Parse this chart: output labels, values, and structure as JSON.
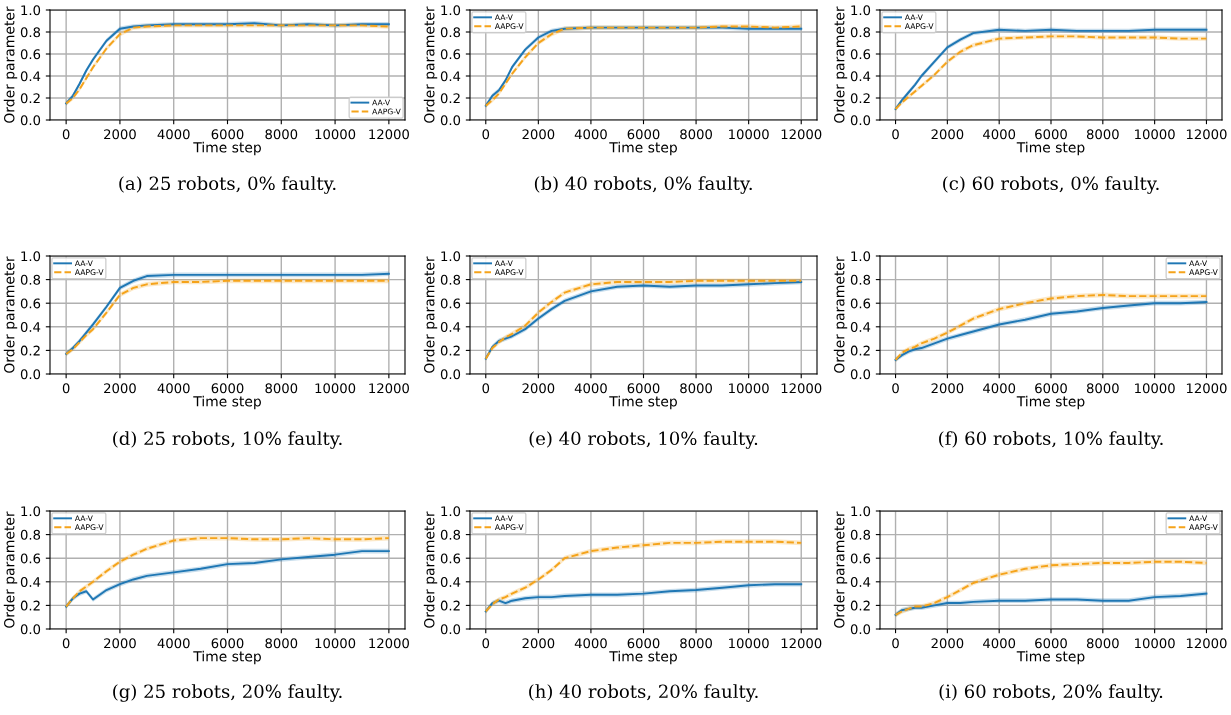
{
  "chart_data": [
    {
      "type": "line",
      "xlabel": "Time step",
      "ylabel": "Order parameter",
      "annotations": [
        "(a) 25 robots, 0% faulty."
      ],
      "legend": "lower right",
      "grid": true,
      "xlim": [
        -600,
        12600
      ],
      "ylim": [
        0,
        1
      ],
      "xticks": [
        0,
        2000,
        4000,
        6000,
        8000,
        10000,
        12000
      ],
      "yticks": [
        {
          "value": 0,
          "label": "0.0"
        },
        {
          "value": 0.2,
          "label": "0.2"
        },
        {
          "value": 0.4,
          "label": "0.4"
        },
        {
          "value": 0.6,
          "label": "0.6"
        },
        {
          "value": 0.8,
          "label": "0.8"
        },
        {
          "value": 1,
          "label": "1.0"
        }
      ],
      "x": [
        0,
        250,
        500,
        750,
        1000,
        1500,
        2000,
        2500,
        3000,
        4000,
        5000,
        6000,
        7000,
        8000,
        9000,
        10000,
        11000,
        12000
      ],
      "series": [
        {
          "name": "AA-V",
          "color": "#1f77b4",
          "line_style": "solid",
          "values": [
            0.15,
            0.22,
            0.33,
            0.45,
            0.55,
            0.72,
            0.83,
            0.85,
            0.86,
            0.87,
            0.87,
            0.87,
            0.88,
            0.86,
            0.87,
            0.86,
            0.87,
            0.87
          ],
          "lower": [
            0.13,
            0.2,
            0.31,
            0.43,
            0.53,
            0.7,
            0.81,
            0.83,
            0.84,
            0.85,
            0.85,
            0.85,
            0.86,
            0.84,
            0.85,
            0.84,
            0.85,
            0.85
          ],
          "upper": [
            0.17,
            0.24,
            0.35,
            0.47,
            0.57,
            0.74,
            0.85,
            0.87,
            0.88,
            0.89,
            0.89,
            0.89,
            0.9,
            0.88,
            0.89,
            0.88,
            0.89,
            0.89
          ]
        },
        {
          "name": "AAPG-V",
          "color": "#f5a31a",
          "line_style": "dashed",
          "values": [
            0.15,
            0.2,
            0.28,
            0.38,
            0.48,
            0.65,
            0.78,
            0.84,
            0.85,
            0.86,
            0.86,
            0.86,
            0.86,
            0.86,
            0.86,
            0.86,
            0.86,
            0.85
          ],
          "lower": [
            0.13,
            0.18,
            0.26,
            0.36,
            0.46,
            0.63,
            0.76,
            0.82,
            0.83,
            0.84,
            0.84,
            0.84,
            0.84,
            0.84,
            0.84,
            0.84,
            0.84,
            0.83
          ],
          "upper": [
            0.17,
            0.22,
            0.3,
            0.4,
            0.5,
            0.67,
            0.8,
            0.86,
            0.87,
            0.88,
            0.88,
            0.88,
            0.88,
            0.88,
            0.88,
            0.88,
            0.88,
            0.87
          ]
        }
      ]
    },
    {
      "type": "line",
      "xlabel": "Time step",
      "ylabel": "Order parameter",
      "annotations": [
        "(b) 40 robots, 0% faulty."
      ],
      "legend": "top left",
      "grid": true,
      "xlim": [
        -600,
        12600
      ],
      "ylim": [
        0,
        1
      ],
      "xticks": [
        0,
        2000,
        4000,
        6000,
        8000,
        10000,
        12000
      ],
      "yticks": [
        {
          "value": 0,
          "label": "0.0"
        },
        {
          "value": 0.2,
          "label": "0.2"
        },
        {
          "value": 0.4,
          "label": "0.4"
        },
        {
          "value": 0.6,
          "label": "0.6"
        },
        {
          "value": 0.8,
          "label": "0.8"
        },
        {
          "value": 1,
          "label": "1.0"
        }
      ],
      "x": [
        0,
        250,
        500,
        750,
        1000,
        1500,
        2000,
        2500,
        3000,
        4000,
        5000,
        6000,
        7000,
        8000,
        9000,
        10000,
        11000,
        12000
      ],
      "series": [
        {
          "name": "AA-V",
          "color": "#1f77b4",
          "line_style": "solid",
          "values": [
            0.13,
            0.22,
            0.27,
            0.36,
            0.48,
            0.64,
            0.75,
            0.81,
            0.83,
            0.84,
            0.84,
            0.84,
            0.84,
            0.84,
            0.84,
            0.83,
            0.83,
            0.83
          ],
          "lower": [
            0.11,
            0.2,
            0.25,
            0.34,
            0.46,
            0.62,
            0.73,
            0.79,
            0.81,
            0.82,
            0.82,
            0.82,
            0.82,
            0.82,
            0.82,
            0.81,
            0.81,
            0.81
          ],
          "upper": [
            0.15,
            0.24,
            0.29,
            0.38,
            0.5,
            0.66,
            0.77,
            0.83,
            0.85,
            0.86,
            0.86,
            0.86,
            0.86,
            0.86,
            0.86,
            0.85,
            0.85,
            0.85
          ]
        },
        {
          "name": "AAPG-V",
          "color": "#f5a31a",
          "line_style": "dashed",
          "values": [
            0.13,
            0.18,
            0.24,
            0.33,
            0.42,
            0.57,
            0.7,
            0.78,
            0.83,
            0.84,
            0.84,
            0.84,
            0.84,
            0.84,
            0.85,
            0.85,
            0.84,
            0.85
          ],
          "lower": [
            0.11,
            0.16,
            0.22,
            0.31,
            0.4,
            0.55,
            0.68,
            0.76,
            0.81,
            0.82,
            0.82,
            0.82,
            0.82,
            0.82,
            0.83,
            0.83,
            0.82,
            0.83
          ],
          "upper": [
            0.15,
            0.2,
            0.26,
            0.35,
            0.44,
            0.59,
            0.72,
            0.8,
            0.85,
            0.86,
            0.86,
            0.86,
            0.86,
            0.86,
            0.87,
            0.87,
            0.86,
            0.87
          ]
        }
      ]
    },
    {
      "type": "line",
      "xlabel": "Time step",
      "ylabel": "Order parameter",
      "annotations": [
        "(c) 60 robots, 0% faulty."
      ],
      "legend": "top left",
      "grid": true,
      "xlim": [
        -600,
        12600
      ],
      "ylim": [
        0,
        1
      ],
      "xticks": [
        0,
        2000,
        4000,
        6000,
        8000,
        10000,
        12000
      ],
      "yticks": [
        {
          "value": 0,
          "label": "0.0"
        },
        {
          "value": 0.2,
          "label": "0.2"
        },
        {
          "value": 0.4,
          "label": "0.4"
        },
        {
          "value": 0.6,
          "label": "0.6"
        },
        {
          "value": 0.8,
          "label": "0.8"
        },
        {
          "value": 1,
          "label": "1.0"
        }
      ],
      "x": [
        0,
        250,
        500,
        750,
        1000,
        1500,
        2000,
        2500,
        3000,
        4000,
        5000,
        6000,
        7000,
        8000,
        9000,
        10000,
        11000,
        12000
      ],
      "series": [
        {
          "name": "AA-V",
          "color": "#1f77b4",
          "line_style": "solid",
          "values": [
            0.1,
            0.18,
            0.25,
            0.32,
            0.4,
            0.53,
            0.66,
            0.73,
            0.79,
            0.82,
            0.81,
            0.82,
            0.81,
            0.81,
            0.81,
            0.82,
            0.82,
            0.82
          ],
          "lower": [
            0.08,
            0.16,
            0.23,
            0.3,
            0.38,
            0.51,
            0.64,
            0.71,
            0.77,
            0.8,
            0.79,
            0.8,
            0.79,
            0.79,
            0.79,
            0.8,
            0.8,
            0.8
          ],
          "upper": [
            0.12,
            0.2,
            0.27,
            0.34,
            0.42,
            0.55,
            0.68,
            0.75,
            0.81,
            0.84,
            0.83,
            0.84,
            0.83,
            0.83,
            0.83,
            0.84,
            0.84,
            0.84
          ]
        },
        {
          "name": "AAPG-V",
          "color": "#f5a31a",
          "line_style": "dashed",
          "values": [
            0.1,
            0.16,
            0.21,
            0.26,
            0.31,
            0.41,
            0.53,
            0.62,
            0.68,
            0.74,
            0.75,
            0.76,
            0.76,
            0.75,
            0.75,
            0.75,
            0.74,
            0.74
          ],
          "lower": [
            0.08,
            0.14,
            0.19,
            0.24,
            0.29,
            0.39,
            0.51,
            0.6,
            0.66,
            0.72,
            0.73,
            0.74,
            0.74,
            0.73,
            0.73,
            0.73,
            0.72,
            0.72
          ],
          "upper": [
            0.12,
            0.18,
            0.23,
            0.28,
            0.33,
            0.43,
            0.55,
            0.64,
            0.7,
            0.76,
            0.77,
            0.78,
            0.78,
            0.77,
            0.77,
            0.77,
            0.76,
            0.76
          ]
        }
      ]
    },
    {
      "type": "line",
      "xlabel": "Time step",
      "ylabel": "Order parameter",
      "annotations": [
        "(d) 25 robots, 10% faulty."
      ],
      "legend": "top left",
      "grid": true,
      "xlim": [
        -600,
        12600
      ],
      "ylim": [
        0,
        1
      ],
      "xticks": [
        0,
        2000,
        4000,
        6000,
        8000,
        10000,
        12000
      ],
      "yticks": [
        {
          "value": 0,
          "label": "0.0"
        },
        {
          "value": 0.2,
          "label": "0.2"
        },
        {
          "value": 0.4,
          "label": "0.4"
        },
        {
          "value": 0.6,
          "label": "0.6"
        },
        {
          "value": 0.8,
          "label": "0.8"
        },
        {
          "value": 1,
          "label": "1.0"
        }
      ],
      "x": [
        0,
        250,
        500,
        750,
        1000,
        1500,
        2000,
        2500,
        3000,
        4000,
        5000,
        6000,
        7000,
        8000,
        9000,
        10000,
        11000,
        12000
      ],
      "series": [
        {
          "name": "AA-V",
          "color": "#1f77b4",
          "line_style": "solid",
          "values": [
            0.17,
            0.22,
            0.28,
            0.35,
            0.42,
            0.57,
            0.73,
            0.79,
            0.83,
            0.84,
            0.84,
            0.84,
            0.84,
            0.84,
            0.84,
            0.84,
            0.84,
            0.85
          ],
          "lower": [
            0.15,
            0.2,
            0.26,
            0.33,
            0.4,
            0.55,
            0.71,
            0.77,
            0.81,
            0.82,
            0.82,
            0.82,
            0.82,
            0.82,
            0.82,
            0.82,
            0.82,
            0.83
          ],
          "upper": [
            0.19,
            0.24,
            0.3,
            0.37,
            0.44,
            0.59,
            0.75,
            0.81,
            0.85,
            0.86,
            0.86,
            0.86,
            0.86,
            0.86,
            0.86,
            0.86,
            0.86,
            0.87
          ]
        },
        {
          "name": "AAPG-V",
          "color": "#f5a31a",
          "line_style": "dashed",
          "values": [
            0.17,
            0.21,
            0.27,
            0.33,
            0.38,
            0.52,
            0.67,
            0.73,
            0.76,
            0.78,
            0.78,
            0.79,
            0.79,
            0.79,
            0.79,
            0.79,
            0.79,
            0.79
          ],
          "lower": [
            0.15,
            0.19,
            0.25,
            0.31,
            0.36,
            0.5,
            0.65,
            0.71,
            0.74,
            0.76,
            0.76,
            0.77,
            0.77,
            0.77,
            0.77,
            0.77,
            0.77,
            0.77
          ],
          "upper": [
            0.19,
            0.23,
            0.29,
            0.35,
            0.4,
            0.54,
            0.69,
            0.75,
            0.78,
            0.8,
            0.8,
            0.81,
            0.81,
            0.81,
            0.81,
            0.81,
            0.81,
            0.81
          ]
        }
      ]
    },
    {
      "type": "line",
      "xlabel": "Time step",
      "ylabel": "Order parameter",
      "annotations": [
        "(e) 40 robots, 10% faulty."
      ],
      "legend": "top left",
      "grid": true,
      "xlim": [
        -600,
        12600
      ],
      "ylim": [
        0,
        1
      ],
      "xticks": [
        0,
        2000,
        4000,
        6000,
        8000,
        10000,
        12000
      ],
      "yticks": [
        {
          "value": 0,
          "label": "0.0"
        },
        {
          "value": 0.2,
          "label": "0.2"
        },
        {
          "value": 0.4,
          "label": "0.4"
        },
        {
          "value": 0.6,
          "label": "0.6"
        },
        {
          "value": 0.8,
          "label": "0.8"
        },
        {
          "value": 1,
          "label": "1.0"
        }
      ],
      "x": [
        0,
        250,
        500,
        750,
        1000,
        1500,
        2000,
        2500,
        3000,
        4000,
        5000,
        6000,
        7000,
        8000,
        9000,
        10000,
        11000,
        12000
      ],
      "series": [
        {
          "name": "AA-V",
          "color": "#1f77b4",
          "line_style": "solid",
          "values": [
            0.13,
            0.23,
            0.28,
            0.3,
            0.32,
            0.38,
            0.47,
            0.55,
            0.62,
            0.7,
            0.74,
            0.75,
            0.74,
            0.75,
            0.75,
            0.76,
            0.77,
            0.78
          ],
          "lower": [
            0.11,
            0.21,
            0.26,
            0.28,
            0.3,
            0.36,
            0.45,
            0.53,
            0.6,
            0.68,
            0.72,
            0.73,
            0.72,
            0.73,
            0.73,
            0.74,
            0.75,
            0.76
          ],
          "upper": [
            0.15,
            0.25,
            0.3,
            0.32,
            0.34,
            0.4,
            0.49,
            0.57,
            0.64,
            0.72,
            0.76,
            0.77,
            0.76,
            0.77,
            0.77,
            0.78,
            0.79,
            0.8
          ]
        },
        {
          "name": "AAPG-V",
          "color": "#f5a31a",
          "line_style": "dashed",
          "values": [
            0.13,
            0.22,
            0.27,
            0.31,
            0.34,
            0.41,
            0.52,
            0.61,
            0.69,
            0.76,
            0.78,
            0.78,
            0.78,
            0.79,
            0.79,
            0.79,
            0.79,
            0.79
          ],
          "lower": [
            0.11,
            0.2,
            0.25,
            0.29,
            0.32,
            0.39,
            0.5,
            0.59,
            0.67,
            0.74,
            0.76,
            0.76,
            0.76,
            0.77,
            0.77,
            0.77,
            0.77,
            0.77
          ],
          "upper": [
            0.15,
            0.24,
            0.29,
            0.33,
            0.36,
            0.43,
            0.54,
            0.63,
            0.71,
            0.78,
            0.8,
            0.8,
            0.8,
            0.81,
            0.81,
            0.81,
            0.81,
            0.81
          ]
        }
      ]
    },
    {
      "type": "line",
      "xlabel": "Time step",
      "ylabel": "Order parameter",
      "annotations": [
        "(f) 60 robots, 10% faulty."
      ],
      "legend": "top right",
      "grid": true,
      "xlim": [
        -600,
        12600
      ],
      "ylim": [
        0,
        1
      ],
      "xticks": [
        0,
        2000,
        4000,
        6000,
        8000,
        10000,
        12000
      ],
      "yticks": [
        {
          "value": 0,
          "label": "0.0"
        },
        {
          "value": 0.2,
          "label": "0.2"
        },
        {
          "value": 0.4,
          "label": "0.4"
        },
        {
          "value": 0.6,
          "label": "0.6"
        },
        {
          "value": 0.8,
          "label": "0.8"
        },
        {
          "value": 1,
          "label": "1.0"
        }
      ],
      "x": [
        0,
        250,
        500,
        750,
        1000,
        1500,
        2000,
        2500,
        3000,
        4000,
        5000,
        6000,
        7000,
        8000,
        9000,
        10000,
        11000,
        12000
      ],
      "series": [
        {
          "name": "AA-V",
          "color": "#1f77b4",
          "line_style": "solid",
          "values": [
            0.12,
            0.16,
            0.19,
            0.21,
            0.22,
            0.26,
            0.3,
            0.33,
            0.36,
            0.42,
            0.46,
            0.51,
            0.53,
            0.56,
            0.58,
            0.6,
            0.6,
            0.61
          ],
          "lower": [
            0.1,
            0.14,
            0.17,
            0.19,
            0.2,
            0.24,
            0.28,
            0.31,
            0.34,
            0.4,
            0.44,
            0.49,
            0.51,
            0.54,
            0.56,
            0.58,
            0.58,
            0.59
          ],
          "upper": [
            0.14,
            0.18,
            0.21,
            0.23,
            0.24,
            0.28,
            0.32,
            0.35,
            0.38,
            0.44,
            0.48,
            0.53,
            0.55,
            0.58,
            0.6,
            0.62,
            0.62,
            0.63
          ]
        },
        {
          "name": "AAPG-V",
          "color": "#f5a31a",
          "line_style": "dashed",
          "values": [
            0.12,
            0.18,
            0.21,
            0.23,
            0.26,
            0.3,
            0.35,
            0.41,
            0.47,
            0.55,
            0.6,
            0.64,
            0.66,
            0.67,
            0.66,
            0.66,
            0.66,
            0.66
          ],
          "lower": [
            0.1,
            0.16,
            0.19,
            0.21,
            0.24,
            0.28,
            0.33,
            0.39,
            0.45,
            0.53,
            0.58,
            0.62,
            0.64,
            0.65,
            0.64,
            0.64,
            0.64,
            0.64
          ],
          "upper": [
            0.14,
            0.2,
            0.23,
            0.25,
            0.28,
            0.32,
            0.37,
            0.43,
            0.49,
            0.57,
            0.62,
            0.66,
            0.68,
            0.69,
            0.68,
            0.68,
            0.68,
            0.68
          ]
        }
      ]
    },
    {
      "type": "line",
      "xlabel": "Time step",
      "ylabel": "Order parameter",
      "annotations": [
        "(g) 25 robots, 20% faulty."
      ],
      "legend": "top left",
      "grid": true,
      "xlim": [
        -600,
        12600
      ],
      "ylim": [
        0,
        1
      ],
      "xticks": [
        0,
        2000,
        4000,
        6000,
        8000,
        10000,
        12000
      ],
      "yticks": [
        {
          "value": 0,
          "label": "0.0"
        },
        {
          "value": 0.2,
          "label": "0.2"
        },
        {
          "value": 0.4,
          "label": "0.4"
        },
        {
          "value": 0.6,
          "label": "0.6"
        },
        {
          "value": 0.8,
          "label": "0.8"
        },
        {
          "value": 1,
          "label": "1.0"
        }
      ],
      "x": [
        0,
        250,
        500,
        750,
        1000,
        1500,
        2000,
        2500,
        3000,
        4000,
        5000,
        6000,
        7000,
        8000,
        9000,
        10000,
        11000,
        12000
      ],
      "series": [
        {
          "name": "AA-V",
          "color": "#1f77b4",
          "line_style": "solid",
          "values": [
            0.19,
            0.26,
            0.3,
            0.32,
            0.25,
            0.33,
            0.38,
            0.42,
            0.45,
            0.48,
            0.51,
            0.55,
            0.56,
            0.59,
            0.61,
            0.63,
            0.66,
            0.66
          ],
          "lower": [
            0.17,
            0.24,
            0.28,
            0.3,
            0.23,
            0.31,
            0.36,
            0.4,
            0.43,
            0.46,
            0.49,
            0.53,
            0.54,
            0.57,
            0.59,
            0.61,
            0.64,
            0.64
          ],
          "upper": [
            0.21,
            0.28,
            0.32,
            0.34,
            0.27,
            0.35,
            0.4,
            0.44,
            0.47,
            0.5,
            0.53,
            0.57,
            0.58,
            0.61,
            0.63,
            0.65,
            0.68,
            0.68
          ]
        },
        {
          "name": "AAPG-V",
          "color": "#f5a31a",
          "line_style": "dashed",
          "values": [
            0.19,
            0.26,
            0.32,
            0.36,
            0.4,
            0.49,
            0.57,
            0.63,
            0.68,
            0.75,
            0.77,
            0.77,
            0.76,
            0.76,
            0.77,
            0.76,
            0.76,
            0.77
          ],
          "lower": [
            0.17,
            0.24,
            0.3,
            0.34,
            0.38,
            0.47,
            0.55,
            0.61,
            0.66,
            0.73,
            0.75,
            0.75,
            0.74,
            0.74,
            0.75,
            0.74,
            0.74,
            0.75
          ],
          "upper": [
            0.21,
            0.28,
            0.34,
            0.38,
            0.42,
            0.51,
            0.59,
            0.65,
            0.7,
            0.77,
            0.79,
            0.79,
            0.78,
            0.78,
            0.79,
            0.78,
            0.78,
            0.79
          ]
        }
      ]
    },
    {
      "type": "line",
      "xlabel": "Time step",
      "ylabel": "Order parameter",
      "annotations": [
        "(h) 40 robots, 20% faulty."
      ],
      "legend": "top left",
      "grid": true,
      "xlim": [
        -600,
        12600
      ],
      "ylim": [
        0,
        1
      ],
      "xticks": [
        0,
        2000,
        4000,
        6000,
        8000,
        10000,
        12000
      ],
      "yticks": [
        {
          "value": 0,
          "label": "0.0"
        },
        {
          "value": 0.2,
          "label": "0.2"
        },
        {
          "value": 0.4,
          "label": "0.4"
        },
        {
          "value": 0.6,
          "label": "0.6"
        },
        {
          "value": 0.8,
          "label": "0.8"
        },
        {
          "value": 1,
          "label": "1.0"
        }
      ],
      "x": [
        0,
        250,
        500,
        750,
        1000,
        1500,
        2000,
        2500,
        3000,
        4000,
        5000,
        6000,
        7000,
        8000,
        9000,
        10000,
        11000,
        12000
      ],
      "series": [
        {
          "name": "AA-V",
          "color": "#1f77b4",
          "line_style": "solid",
          "values": [
            0.15,
            0.22,
            0.24,
            0.22,
            0.24,
            0.26,
            0.27,
            0.27,
            0.28,
            0.29,
            0.29,
            0.3,
            0.32,
            0.33,
            0.35,
            0.37,
            0.38,
            0.38
          ],
          "lower": [
            0.13,
            0.2,
            0.22,
            0.2,
            0.22,
            0.24,
            0.25,
            0.25,
            0.26,
            0.27,
            0.27,
            0.28,
            0.3,
            0.31,
            0.33,
            0.35,
            0.36,
            0.36
          ],
          "upper": [
            0.17,
            0.24,
            0.26,
            0.24,
            0.26,
            0.28,
            0.29,
            0.29,
            0.3,
            0.31,
            0.31,
            0.32,
            0.34,
            0.35,
            0.37,
            0.39,
            0.4,
            0.4
          ]
        },
        {
          "name": "AAPG-V",
          "color": "#f5a31a",
          "line_style": "dashed",
          "values": [
            0.15,
            0.21,
            0.25,
            0.27,
            0.3,
            0.35,
            0.42,
            0.5,
            0.6,
            0.66,
            0.69,
            0.71,
            0.73,
            0.73,
            0.74,
            0.74,
            0.74,
            0.73
          ],
          "lower": [
            0.13,
            0.19,
            0.23,
            0.25,
            0.28,
            0.33,
            0.4,
            0.48,
            0.58,
            0.64,
            0.67,
            0.69,
            0.71,
            0.71,
            0.72,
            0.72,
            0.72,
            0.71
          ],
          "upper": [
            0.17,
            0.23,
            0.27,
            0.29,
            0.32,
            0.37,
            0.44,
            0.52,
            0.62,
            0.68,
            0.71,
            0.73,
            0.75,
            0.75,
            0.76,
            0.76,
            0.76,
            0.75
          ]
        }
      ]
    },
    {
      "type": "line",
      "xlabel": "Time step",
      "ylabel": "Order parameter",
      "annotations": [
        "(i) 60 robots, 20% faulty."
      ],
      "legend": "top right",
      "grid": true,
      "xlim": [
        -600,
        12600
      ],
      "ylim": [
        0,
        1
      ],
      "xticks": [
        0,
        2000,
        4000,
        6000,
        8000,
        10000,
        12000
      ],
      "yticks": [
        {
          "value": 0,
          "label": "0.0"
        },
        {
          "value": 0.2,
          "label": "0.2"
        },
        {
          "value": 0.4,
          "label": "0.4"
        },
        {
          "value": 0.6,
          "label": "0.6"
        },
        {
          "value": 0.8,
          "label": "0.8"
        },
        {
          "value": 1,
          "label": "1.0"
        }
      ],
      "x": [
        0,
        250,
        500,
        750,
        1000,
        1500,
        2000,
        2500,
        3000,
        4000,
        5000,
        6000,
        7000,
        8000,
        9000,
        10000,
        11000,
        12000
      ],
      "series": [
        {
          "name": "AA-V",
          "color": "#1f77b4",
          "line_style": "solid",
          "values": [
            0.12,
            0.16,
            0.17,
            0.18,
            0.18,
            0.2,
            0.22,
            0.22,
            0.23,
            0.24,
            0.24,
            0.25,
            0.25,
            0.24,
            0.24,
            0.27,
            0.28,
            0.3
          ],
          "lower": [
            0.1,
            0.14,
            0.15,
            0.16,
            0.16,
            0.18,
            0.2,
            0.2,
            0.21,
            0.22,
            0.22,
            0.23,
            0.23,
            0.22,
            0.22,
            0.25,
            0.26,
            0.28
          ],
          "upper": [
            0.14,
            0.18,
            0.19,
            0.2,
            0.2,
            0.22,
            0.24,
            0.24,
            0.25,
            0.26,
            0.26,
            0.27,
            0.27,
            0.26,
            0.26,
            0.29,
            0.3,
            0.32
          ]
        },
        {
          "name": "AAPG-V",
          "color": "#f5a31a",
          "line_style": "dashed",
          "values": [
            0.12,
            0.15,
            0.17,
            0.19,
            0.19,
            0.22,
            0.27,
            0.33,
            0.39,
            0.46,
            0.51,
            0.54,
            0.55,
            0.56,
            0.56,
            0.57,
            0.57,
            0.56
          ],
          "lower": [
            0.1,
            0.13,
            0.15,
            0.17,
            0.17,
            0.2,
            0.25,
            0.31,
            0.37,
            0.44,
            0.49,
            0.52,
            0.53,
            0.54,
            0.54,
            0.55,
            0.55,
            0.54
          ],
          "upper": [
            0.14,
            0.17,
            0.19,
            0.21,
            0.21,
            0.24,
            0.29,
            0.35,
            0.41,
            0.48,
            0.53,
            0.56,
            0.57,
            0.58,
            0.58,
            0.59,
            0.59,
            0.58
          ]
        }
      ]
    }
  ]
}
